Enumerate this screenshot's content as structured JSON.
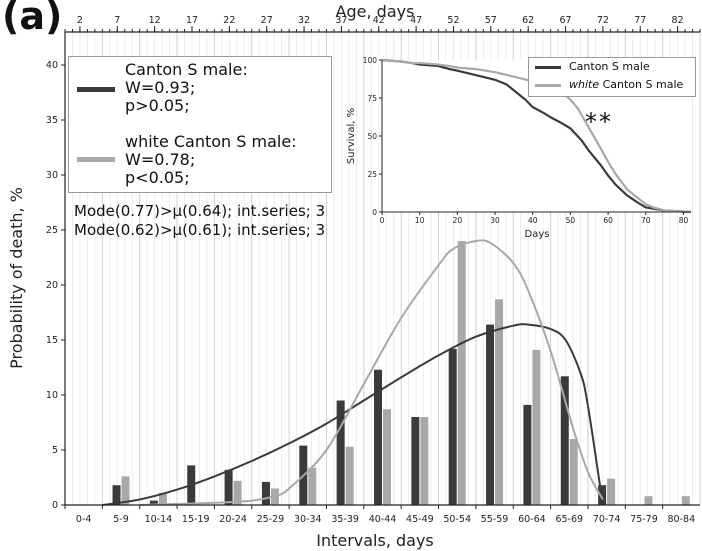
{
  "panel_label": "(a)",
  "colors": {
    "canton": "#3a3a3a",
    "white": "#a8a8a8",
    "grid": "#dcdcdc",
    "axis": "#222222"
  },
  "legend": {
    "canton_label": "Canton S male:",
    "canton_w": "W=0.93;",
    "canton_p": "p>0.05;",
    "white_label": "white Canton S male:",
    "white_w": "W=0.78;",
    "white_p": "p<0.05;"
  },
  "mode_lines": [
    "Mode(0.77)>μ(0.64); int.series; 3",
    "Mode(0.62)>μ(0.61); int.series; 3"
  ],
  "chart_data": [
    {
      "type": "bar",
      "title": "",
      "xlabel": "Intervals, days",
      "ylabel": "Probability of death, %",
      "top_xlabel": "Age, days",
      "top_ticks": [
        "2",
        "7",
        "12",
        "17",
        "22",
        "27",
        "32",
        "37",
        "42",
        "47",
        "52",
        "57",
        "62",
        "67",
        "72",
        "77",
        "82"
      ],
      "categories": [
        "0-4",
        "5-9",
        "10-14",
        "15-19",
        "20-24",
        "25-29",
        "30-34",
        "35-39",
        "40-44",
        "45-49",
        "50-54",
        "55-59",
        "60-64",
        "65-69",
        "70-74",
        "75-79",
        "80-84"
      ],
      "ylim": [
        0,
        43
      ],
      "yticks": [
        0,
        5,
        10,
        15,
        20,
        25,
        30,
        35,
        40
      ],
      "series": [
        {
          "name": "Canton S male",
          "values": [
            0,
            1.8,
            0.4,
            3.6,
            3.2,
            2.1,
            5.4,
            9.5,
            12.3,
            8.0,
            14.2,
            16.4,
            9.1,
            11.7,
            1.8,
            0,
            0
          ]
        },
        {
          "name": "white Canton S male",
          "values": [
            0,
            2.6,
            1.1,
            0,
            2.2,
            1.5,
            3.4,
            5.3,
            8.7,
            8.0,
            24.0,
            18.7,
            14.1,
            6.0,
            2.4,
            0.8,
            0.8
          ]
        }
      ],
      "fitted_curves": [
        {
          "name": "Canton S male",
          "x": [
            5,
            10,
            15,
            20,
            25,
            30,
            35,
            40,
            45,
            50,
            55,
            60,
            62,
            65,
            67,
            69,
            70,
            72
          ],
          "y": [
            0,
            0.5,
            1.4,
            2.6,
            4.0,
            5.6,
            7.4,
            9.5,
            11.6,
            13.6,
            15.3,
            16.3,
            16.4,
            16.0,
            15.0,
            12.0,
            9.0,
            0
          ]
        },
        {
          "name": "white Canton S male",
          "x": [
            10,
            15,
            20,
            25,
            28,
            30,
            35,
            40,
            45,
            50,
            52,
            55,
            57,
            60,
            62,
            65,
            68,
            70,
            72
          ],
          "y": [
            0,
            0.1,
            0.2,
            0.4,
            0.8,
            1.5,
            5.0,
            11.0,
            17.0,
            21.8,
            23.3,
            24.0,
            23.8,
            22.0,
            19.5,
            14.0,
            7.0,
            3.0,
            0.5
          ]
        }
      ]
    },
    {
      "type": "line",
      "title": "",
      "xlabel": "Days",
      "ylabel": "Survival, %",
      "xlim": [
        0,
        82
      ],
      "ylim": [
        0,
        100
      ],
      "xticks": [
        0,
        10,
        20,
        30,
        40,
        50,
        60,
        70,
        80
      ],
      "yticks": [
        0,
        25,
        50,
        75,
        100
      ],
      "legend_canton": "Canton S male",
      "legend_white": "white Canton S male",
      "annotation": "**",
      "series": [
        {
          "name": "Canton S male",
          "x": [
            0,
            5,
            8,
            10,
            15,
            18,
            20,
            25,
            30,
            33,
            35,
            38,
            40,
            43,
            45,
            48,
            50,
            53,
            55,
            58,
            60,
            62,
            65,
            68,
            70,
            75,
            82
          ],
          "y": [
            100,
            99,
            98,
            97,
            96,
            94,
            93,
            90,
            87,
            84,
            80,
            74,
            69,
            65,
            62,
            58,
            55,
            47,
            40,
            31,
            24,
            18,
            11,
            6,
            3,
            1,
            0
          ]
        },
        {
          "name": "white Canton S male",
          "x": [
            0,
            5,
            8,
            10,
            15,
            18,
            20,
            25,
            30,
            35,
            40,
            45,
            48,
            50,
            52,
            55,
            58,
            60,
            62,
            65,
            68,
            70,
            72,
            75,
            82
          ],
          "y": [
            100,
            99,
            98,
            98,
            97,
            96,
            95,
            94,
            92,
            89,
            86,
            82,
            78,
            74,
            68,
            55,
            42,
            33,
            25,
            15,
            9,
            5,
            3,
            1,
            0
          ]
        }
      ]
    }
  ]
}
